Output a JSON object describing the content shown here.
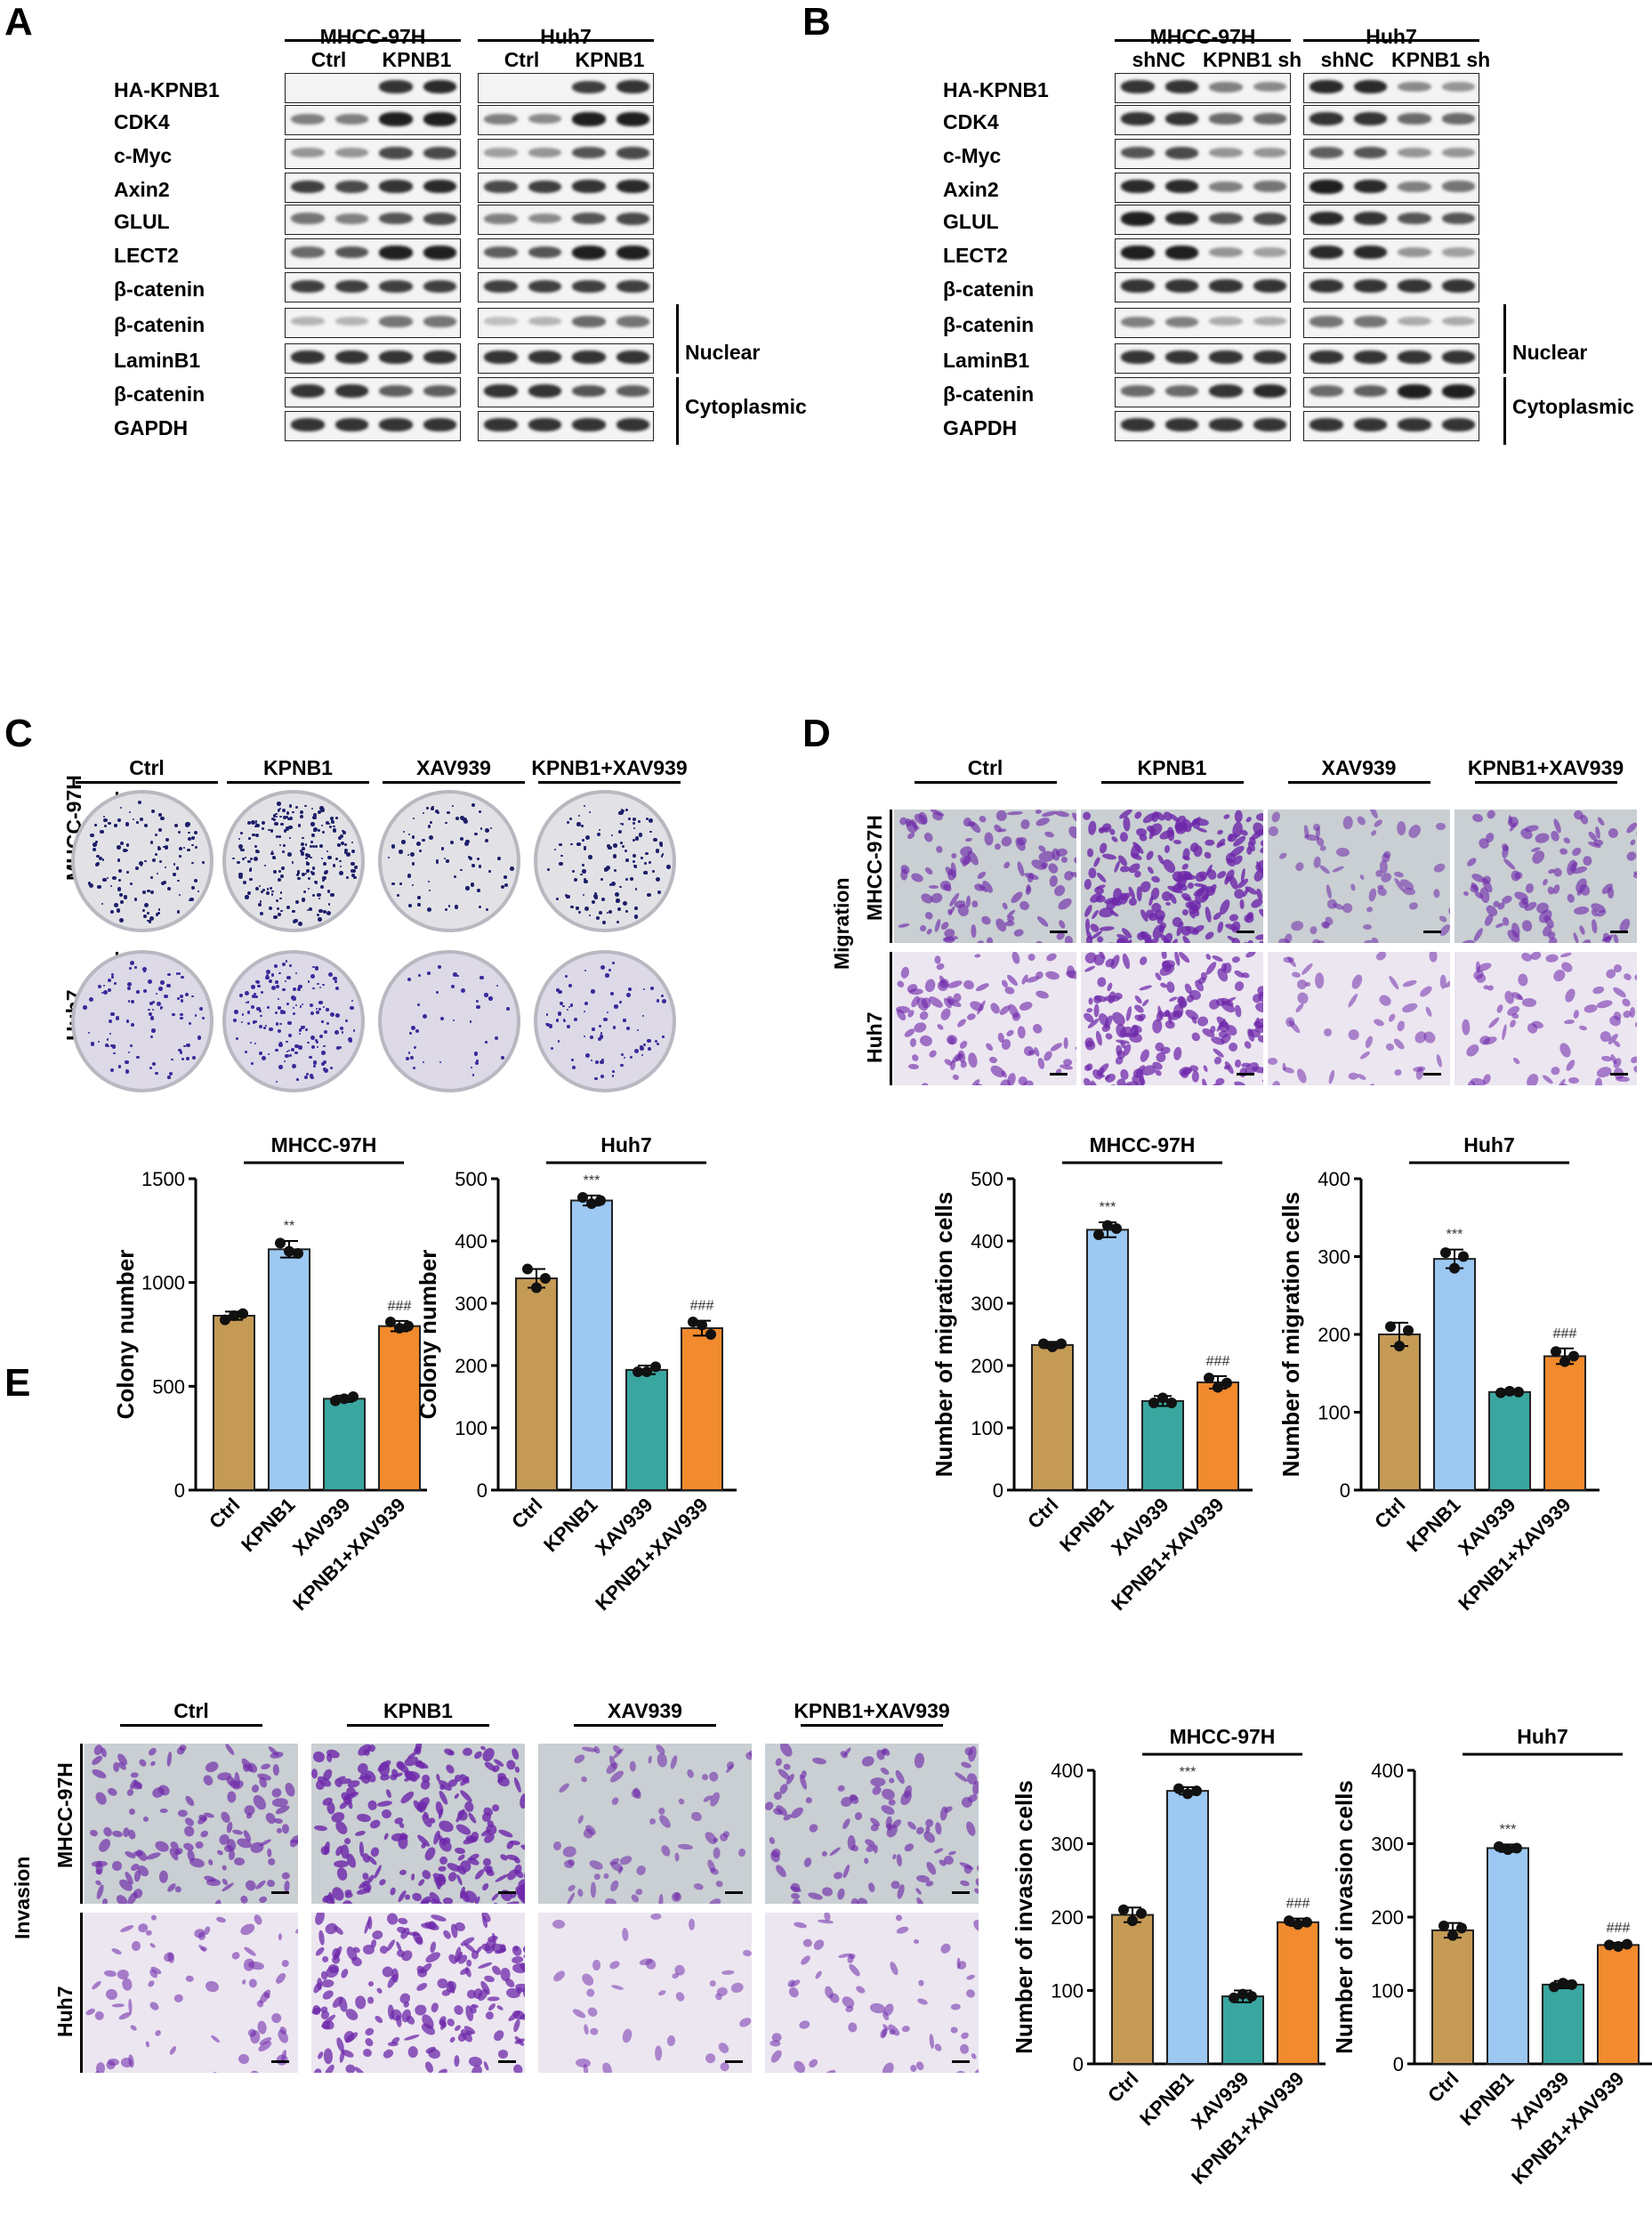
{
  "panels": {
    "a": "A",
    "b": "B",
    "c": "C",
    "d": "D",
    "e": "E"
  },
  "panelA": {
    "cells": [
      "MHCC-97H",
      "Huh7"
    ],
    "groups": [
      "Ctrl",
      "KPNB1",
      "Ctrl",
      "KPNB1"
    ],
    "rows": [
      "HA-KPNB1",
      "CDK4",
      "c-Myc",
      "Axin2",
      "GLUL",
      "LECT2",
      "β-catenin",
      "β-catenin",
      "LaminB1",
      "β-catenin",
      "GAPDH"
    ],
    "fractions": [
      "Nuclear",
      "Cytoplasmic"
    ],
    "intensities": [
      [
        0,
        0,
        0.85,
        0.9,
        0,
        0,
        0.8,
        0.85
      ],
      [
        0.5,
        0.5,
        0.95,
        0.95,
        0.5,
        0.45,
        0.95,
        0.95
      ],
      [
        0.4,
        0.4,
        0.75,
        0.75,
        0.35,
        0.4,
        0.7,
        0.75
      ],
      [
        0.8,
        0.75,
        0.85,
        0.9,
        0.75,
        0.8,
        0.85,
        0.9
      ],
      [
        0.55,
        0.5,
        0.7,
        0.75,
        0.5,
        0.45,
        0.7,
        0.75
      ],
      [
        0.6,
        0.7,
        0.95,
        0.95,
        0.65,
        0.7,
        0.95,
        0.95
      ],
      [
        0.8,
        0.8,
        0.8,
        0.8,
        0.8,
        0.8,
        0.8,
        0.8
      ],
      [
        0.25,
        0.25,
        0.55,
        0.55,
        0.2,
        0.25,
        0.6,
        0.55
      ],
      [
        0.85,
        0.85,
        0.85,
        0.85,
        0.85,
        0.85,
        0.85,
        0.85
      ],
      [
        0.85,
        0.85,
        0.65,
        0.65,
        0.85,
        0.85,
        0.7,
        0.65
      ],
      [
        0.85,
        0.85,
        0.85,
        0.85,
        0.85,
        0.85,
        0.85,
        0.85
      ]
    ]
  },
  "panelB": {
    "cells": [
      "MHCC-97H",
      "Huh7"
    ],
    "groups": [
      "shNC",
      "KPNB1 sh",
      "shNC",
      "KPNB1 sh"
    ],
    "rows": [
      "HA-KPNB1",
      "CDK4",
      "c-Myc",
      "Axin2",
      "GLUL",
      "LECT2",
      "β-catenin",
      "β-catenin",
      "LaminB1",
      "β-catenin",
      "GAPDH"
    ],
    "fractions": [
      "Nuclear",
      "Cytoplasmic"
    ],
    "intensities": [
      [
        0.85,
        0.85,
        0.5,
        0.45,
        0.9,
        0.9,
        0.45,
        0.4
      ],
      [
        0.85,
        0.85,
        0.6,
        0.6,
        0.85,
        0.85,
        0.6,
        0.6
      ],
      [
        0.7,
        0.75,
        0.4,
        0.4,
        0.65,
        0.7,
        0.4,
        0.4
      ],
      [
        0.9,
        0.9,
        0.5,
        0.55,
        0.95,
        0.9,
        0.5,
        0.55
      ],
      [
        0.95,
        0.9,
        0.7,
        0.75,
        0.9,
        0.85,
        0.7,
        0.7
      ],
      [
        0.95,
        0.95,
        0.4,
        0.35,
        0.9,
        0.9,
        0.4,
        0.35
      ],
      [
        0.85,
        0.85,
        0.85,
        0.85,
        0.85,
        0.85,
        0.85,
        0.85
      ],
      [
        0.5,
        0.5,
        0.3,
        0.3,
        0.55,
        0.55,
        0.3,
        0.3
      ],
      [
        0.85,
        0.85,
        0.85,
        0.85,
        0.85,
        0.85,
        0.85,
        0.85
      ],
      [
        0.6,
        0.6,
        0.85,
        0.9,
        0.6,
        0.65,
        0.95,
        0.95
      ],
      [
        0.85,
        0.85,
        0.85,
        0.85,
        0.85,
        0.85,
        0.85,
        0.85
      ]
    ]
  },
  "panelC": {
    "groups": [
      "Ctrl",
      "KPNB1",
      "XAV939",
      "KPNB1+XAV939"
    ],
    "cells": [
      "MHCC-97H",
      "Huh7"
    ],
    "density": [
      [
        0.45,
        0.85,
        0.3,
        0.45
      ],
      [
        0.35,
        0.6,
        0.15,
        0.3
      ]
    ]
  },
  "panelD": {
    "groups": [
      "Ctrl",
      "KPNB1",
      "XAV939",
      "KPNB1+XAV939"
    ],
    "cells": [
      "MHCC-97H",
      "Huh7"
    ],
    "assay": "Migration",
    "density": [
      [
        0.45,
        0.9,
        0.25,
        0.4
      ],
      [
        0.4,
        0.7,
        0.2,
        0.3
      ]
    ]
  },
  "panelE": {
    "groups": [
      "Ctrl",
      "KPNB1",
      "XAV939",
      "KPNB1+XAV939"
    ],
    "cells": [
      "MHCC-97H",
      "Huh7"
    ],
    "assay": "Invasion",
    "density": [
      [
        0.55,
        0.9,
        0.3,
        0.45
      ],
      [
        0.3,
        0.75,
        0.15,
        0.25
      ]
    ]
  },
  "chart_data": [
    {
      "type": "bar",
      "title": "MHCC-97H",
      "ylabel": "Colony number",
      "categories": [
        "Ctrl",
        "KPNB1",
        "XAV939",
        "KPNB1+XAV939"
      ],
      "values": [
        840,
        1160,
        440,
        790
      ],
      "error": [
        20,
        40,
        15,
        25
      ],
      "points": [
        [
          820,
          840,
          850
        ],
        [
          1190,
          1150,
          1140
        ],
        [
          430,
          440,
          450
        ],
        [
          810,
          780,
          790
        ]
      ],
      "ylim": [
        0,
        1500
      ],
      "yticks": [
        0,
        500,
        1000,
        1500
      ],
      "sig": [
        "",
        "**",
        "",
        "###"
      ],
      "colors": [
        "#c49a55",
        "#9cc8f2",
        "#3aa6a0",
        "#f28a2e"
      ]
    },
    {
      "type": "bar",
      "title": "Huh7",
      "ylabel": "Colony number",
      "categories": [
        "Ctrl",
        "KPNB1",
        "XAV939",
        "KPNB1+XAV939"
      ],
      "values": [
        340,
        465,
        193,
        260
      ],
      "error": [
        15,
        8,
        7,
        12
      ],
      "points": [
        [
          355,
          325,
          340
        ],
        [
          470,
          460,
          465
        ],
        [
          190,
          190,
          198
        ],
        [
          270,
          265,
          250
        ]
      ],
      "ylim": [
        0,
        500
      ],
      "yticks": [
        0,
        100,
        200,
        300,
        400,
        500
      ],
      "sig": [
        "",
        "***",
        "",
        "###"
      ],
      "colors": [
        "#c49a55",
        "#9cc8f2",
        "#3aa6a0",
        "#f28a2e"
      ]
    },
    {
      "type": "bar",
      "title": "MHCC-97H",
      "ylabel": "Number of migration cells",
      "categories": [
        "Ctrl",
        "KPNB1",
        "XAV939",
        "KPNB1+XAV939"
      ],
      "values": [
        233,
        418,
        143,
        173
      ],
      "error": [
        5,
        12,
        8,
        10
      ],
      "points": [
        [
          235,
          230,
          235
        ],
        [
          410,
          425,
          420
        ],
        [
          140,
          148,
          140
        ],
        [
          180,
          165,
          172
        ]
      ],
      "ylim": [
        0,
        500
      ],
      "yticks": [
        0,
        100,
        200,
        300,
        400,
        500
      ],
      "sig": [
        "",
        "***",
        "",
        "###"
      ],
      "colors": [
        "#c49a55",
        "#9cc8f2",
        "#3aa6a0",
        "#f28a2e"
      ]
    },
    {
      "type": "bar",
      "title": "Huh7",
      "ylabel": "Number of migration cells",
      "categories": [
        "Ctrl",
        "KPNB1",
        "XAV939",
        "KPNB1+XAV939"
      ],
      "values": [
        200,
        297,
        126,
        172
      ],
      "error": [
        15,
        12,
        3,
        10
      ],
      "points": [
        [
          210,
          185,
          205
        ],
        [
          305,
          285,
          300
        ],
        [
          125,
          127,
          126
        ],
        [
          178,
          165,
          172
        ]
      ],
      "ylim": [
        0,
        400
      ],
      "yticks": [
        0,
        100,
        200,
        300,
        400
      ],
      "sig": [
        "",
        "***",
        "",
        "###"
      ],
      "colors": [
        "#c49a55",
        "#9cc8f2",
        "#3aa6a0",
        "#f28a2e"
      ]
    },
    {
      "type": "bar",
      "title": "MHCC-97H",
      "ylabel": "Number of invasion cells",
      "categories": [
        "Ctrl",
        "KPNB1",
        "XAV939",
        "KPNB1+XAV939"
      ],
      "values": [
        203,
        372,
        92,
        193
      ],
      "error": [
        10,
        5,
        8,
        5
      ],
      "points": [
        [
          210,
          195,
          205
        ],
        [
          375,
          368,
          372
        ],
        [
          90,
          95,
          92
        ],
        [
          195,
          190,
          193
        ]
      ],
      "ylim": [
        0,
        400
      ],
      "yticks": [
        0,
        100,
        200,
        300,
        400
      ],
      "sig": [
        "",
        "***",
        "",
        "###"
      ],
      "colors": [
        "#c49a55",
        "#9cc8f2",
        "#3aa6a0",
        "#f28a2e"
      ]
    },
    {
      "type": "bar",
      "title": "Huh7",
      "ylabel": "Number of invasion cells",
      "categories": [
        "Ctrl",
        "KPNB1",
        "XAV939",
        "KPNB1+XAV939"
      ],
      "values": [
        182,
        294,
        108,
        162
      ],
      "error": [
        10,
        5,
        5,
        3
      ],
      "points": [
        [
          188,
          175,
          185
        ],
        [
          296,
          292,
          294
        ],
        [
          105,
          110,
          108
        ],
        [
          162,
          160,
          163
        ]
      ],
      "ylim": [
        0,
        400
      ],
      "yticks": [
        0,
        100,
        200,
        300,
        400
      ],
      "sig": [
        "",
        "***",
        "",
        "###"
      ],
      "colors": [
        "#c49a55",
        "#9cc8f2",
        "#3aa6a0",
        "#f28a2e"
      ]
    }
  ]
}
